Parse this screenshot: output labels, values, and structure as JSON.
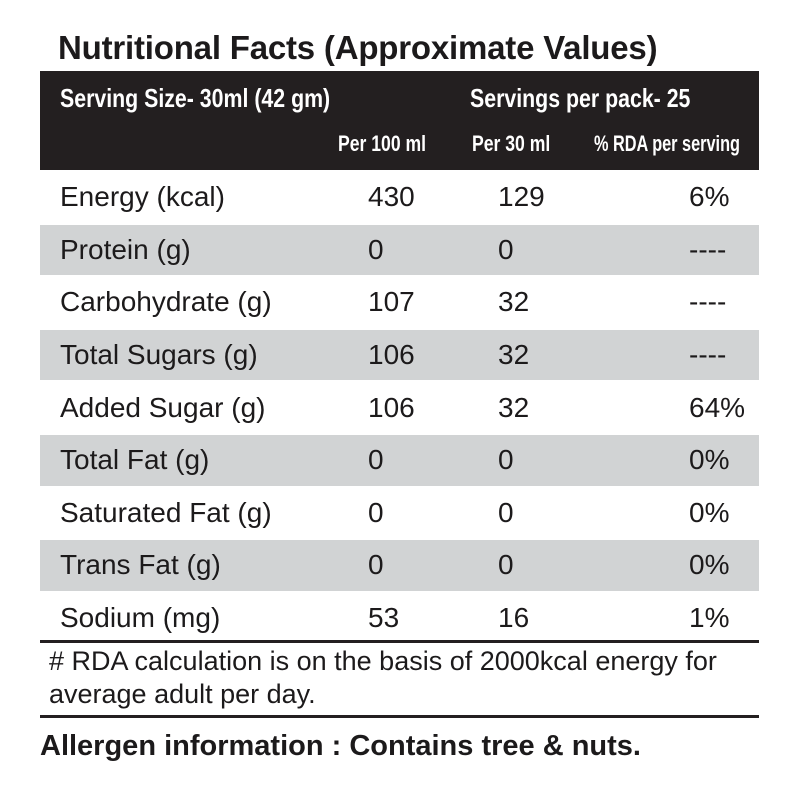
{
  "title": "Nutritional Facts (Approximate Values)",
  "header": {
    "serving_size": "Serving Size-  30ml (42 gm)",
    "servings_per_pack": "Servings per pack- 25",
    "col_per_100": "Per 100 ml",
    "col_per_30": "Per 30 ml",
    "col_rda": "% RDA per serving"
  },
  "rows": [
    {
      "name": "Energy (kcal)",
      "per_100": "430",
      "per_30": "129",
      "rda": "6%"
    },
    {
      "name": "Protein (g)",
      "per_100": "0",
      "per_30": "0",
      "rda": "----"
    },
    {
      "name": "Carbohydrate (g)",
      "per_100": "107",
      "per_30": "32",
      "rda": "----"
    },
    {
      "name": "Total Sugars (g)",
      "per_100": "106",
      "per_30": "32",
      "rda": "----"
    },
    {
      "name": "Added Sugar (g)",
      "per_100": "106",
      "per_30": "32",
      "rda": "64%"
    },
    {
      "name": "Total Fat (g)",
      "per_100": "0",
      "per_30": "0",
      "rda": "0%"
    },
    {
      "name": "Saturated Fat (g)",
      "per_100": "0",
      "per_30": "0",
      "rda": "0%"
    },
    {
      "name": "Trans Fat (g)",
      "per_100": "0",
      "per_30": "0",
      "rda": "0%"
    },
    {
      "name": "Sodium (mg)",
      "per_100": "53",
      "per_30": "16",
      "rda": "1%"
    }
  ],
  "footnote": "# RDA calculation is on the basis of 2000kcal energy for average adult per day.",
  "allergen": "Allergen information : Contains tree & nuts.",
  "colors": {
    "header_bg": "#231f20",
    "shaded_row": "#d1d3d4",
    "text": "#1c1a1b"
  }
}
